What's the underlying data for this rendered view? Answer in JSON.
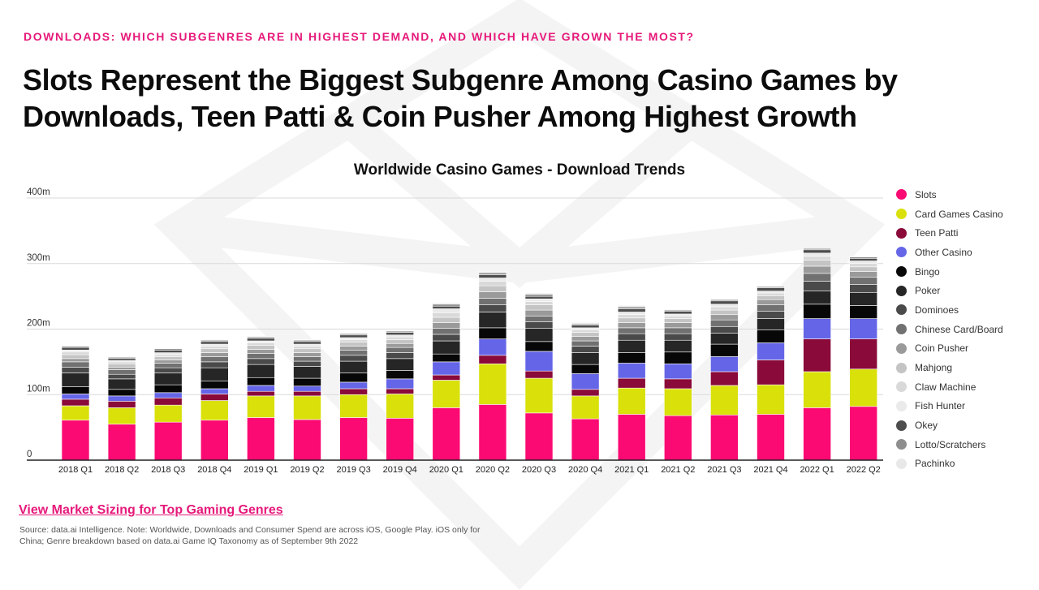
{
  "header": {
    "eyebrow": "DOWNLOADS: WHICH SUBGENRES ARE IN HIGHEST DEMAND, AND WHICH HAVE GROWN THE MOST?",
    "title": "Slots Represent the Biggest Subgenre Among Casino Games by Downloads, Teen Patti & Coin Pusher Among Highest Growth"
  },
  "footer": {
    "link_text": "View Market Sizing for Top Gaming Genres",
    "source_text": "Source: data.ai Intelligence. Note: Worldwide, Downloads and Consumer Spend are across iOS, Google Play. iOS only for China; Genre breakdown based  on data.ai Game IQ Taxonomy as of September 9th 2022"
  },
  "chart_data": {
    "type": "bar",
    "stacked": true,
    "title": "Worldwide Casino Games - Download Trends",
    "xlabel": "",
    "ylabel": "",
    "ylim": [
      0,
      400
    ],
    "y_ticks": [
      {
        "value": 0,
        "label": "0"
      },
      {
        "value": 100,
        "label": "100m"
      },
      {
        "value": 200,
        "label": "200m"
      },
      {
        "value": 300,
        "label": "300m"
      },
      {
        "value": 400,
        "label": "400m"
      }
    ],
    "grid": true,
    "legend_position": "right",
    "categories": [
      "2018 Q1",
      "2018 Q2",
      "2018 Q3",
      "2018 Q4",
      "2019 Q1",
      "2019 Q2",
      "2019 Q3",
      "2019 Q4",
      "2020 Q1",
      "2020 Q2",
      "2020 Q3",
      "2020 Q4",
      "2021 Q1",
      "2021 Q2",
      "2021 Q3",
      "2021 Q4",
      "2022 Q1",
      "2022 Q2"
    ],
    "series": [
      {
        "name": "Slots",
        "color": "#fb0a73",
        "values": [
          61,
          55,
          58,
          61,
          65,
          62,
          65,
          64,
          80,
          85,
          72,
          63,
          70,
          68,
          69,
          70,
          80,
          82
        ]
      },
      {
        "name": "Card Games Casino",
        "color": "#d9e00a",
        "values": [
          22,
          25,
          26,
          30,
          33,
          36,
          35,
          37,
          42,
          62,
          53,
          35,
          40,
          41,
          45,
          45,
          55,
          57
        ]
      },
      {
        "name": "Teen Patti",
        "color": "#8a0a3a",
        "values": [
          10,
          10,
          11,
          10,
          7,
          7,
          9,
          8,
          8,
          13,
          11,
          10,
          15,
          15,
          21,
          38,
          50,
          46
        ]
      },
      {
        "name": "Other Casino",
        "color": "#6565e8",
        "values": [
          8,
          8,
          8,
          8,
          9,
          8,
          10,
          15,
          20,
          25,
          30,
          24,
          23,
          23,
          23,
          26,
          31,
          31
        ]
      },
      {
        "name": "Bingo",
        "color": "#070707",
        "values": [
          11,
          10,
          12,
          12,
          12,
          12,
          14,
          13,
          12,
          17,
          15,
          14,
          16,
          18,
          19,
          20,
          22,
          20
        ]
      },
      {
        "name": "Poker",
        "color": "#262626",
        "values": [
          21,
          16,
          18,
          20,
          20,
          18,
          18,
          18,
          20,
          24,
          20,
          18,
          19,
          18,
          17,
          17,
          20,
          20
        ]
      },
      {
        "name": "Dominoes",
        "color": "#4a4a4a",
        "values": [
          9,
          7,
          8,
          9,
          9,
          8,
          9,
          9,
          10,
          11,
          10,
          10,
          10,
          10,
          10,
          11,
          15,
          12
        ]
      },
      {
        "name": "Chinese Card/Board",
        "color": "#717171",
        "values": [
          8,
          7,
          7,
          8,
          8,
          7,
          8,
          8,
          9,
          10,
          9,
          8,
          9,
          9,
          10,
          10,
          12,
          11
        ]
      },
      {
        "name": "Coin Pusher",
        "color": "#9a9a9a",
        "values": [
          5,
          4,
          5,
          6,
          6,
          6,
          6,
          6,
          9,
          10,
          9,
          7,
          8,
          8,
          8,
          8,
          11,
          9
        ]
      },
      {
        "name": "Mahjong",
        "color": "#c4c4c4",
        "values": [
          6,
          5,
          5,
          6,
          6,
          6,
          6,
          6,
          8,
          9,
          8,
          6,
          7,
          6,
          7,
          6,
          9,
          7
        ]
      },
      {
        "name": "Claw Machine",
        "color": "#d9d9d9",
        "values": [
          4,
          3,
          3,
          4,
          4,
          4,
          4,
          4,
          7,
          7,
          5,
          4,
          5,
          4,
          5,
          4,
          6,
          5
        ]
      },
      {
        "name": "Fish Hunter",
        "color": "#eaeaea",
        "values": [
          3,
          2,
          3,
          3,
          3,
          3,
          3,
          3,
          6,
          5,
          4,
          3,
          4,
          3,
          4,
          3,
          5,
          4
        ]
      },
      {
        "name": "Okey",
        "color": "#4d4d4d",
        "values": [
          4,
          3,
          4,
          4,
          4,
          4,
          4,
          4,
          4,
          5,
          4,
          4,
          5,
          4,
          5,
          5,
          5,
          4
        ]
      },
      {
        "name": "Lotto/Scratchers",
        "color": "#8e8e8e",
        "values": [
          2,
          2,
          2,
          2,
          2,
          2,
          2,
          2,
          3,
          3,
          3,
          2,
          3,
          2,
          2,
          2,
          2,
          2
        ]
      },
      {
        "name": "Pachinko",
        "color": "#e8e8e8",
        "values": [
          1,
          1,
          1,
          1,
          1,
          1,
          1,
          1,
          2,
          2,
          2,
          2,
          2,
          1,
          1,
          1,
          2,
          1
        ]
      }
    ]
  }
}
